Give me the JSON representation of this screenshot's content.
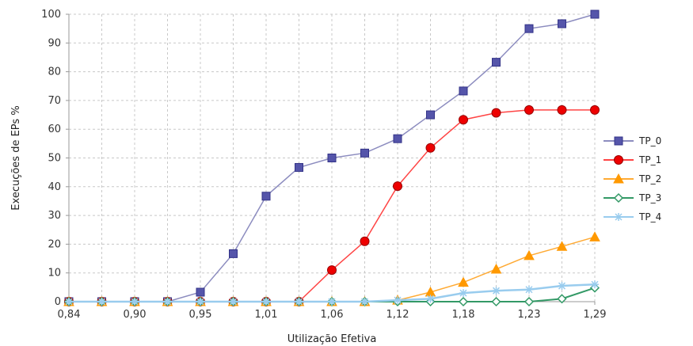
{
  "chart_data": {
    "type": "line",
    "title": "",
    "xlabel": "Utilização Efetiva",
    "ylabel": "Execuções de EPs %",
    "ylim": [
      0,
      100
    ],
    "yticks": [
      0,
      10,
      20,
      30,
      40,
      50,
      60,
      70,
      80,
      90,
      100
    ],
    "xtick_labels": [
      "0,84",
      "0,90",
      "0,95",
      "1,01",
      "1,06",
      "1,12",
      "1,18",
      "1,23",
      "1,29"
    ],
    "grid": true,
    "legend_position": "right",
    "x": [
      0.84,
      0.87,
      0.9,
      0.93,
      0.95,
      0.98,
      1.01,
      1.04,
      1.06,
      1.09,
      1.12,
      1.15,
      1.18,
      1.21,
      1.23,
      1.26,
      1.29
    ],
    "series": [
      {
        "name": "TP_0",
        "color": "#8c8cbf",
        "marker_fill": "#5555aa",
        "marker": "square",
        "values": [
          0,
          0,
          0,
          0,
          3.3,
          16.7,
          36.7,
          46.7,
          50,
          51.7,
          56.7,
          65,
          73.3,
          83.3,
          95,
          96.7,
          100
        ]
      },
      {
        "name": "TP_1",
        "color": "#ff4444",
        "marker_fill": "#ee0000",
        "marker": "circle",
        "values": [
          0,
          0,
          0,
          0,
          0,
          0,
          0,
          0,
          11,
          21,
          40.2,
          53.5,
          63.3,
          65.7,
          66.7,
          66.7,
          66.7
        ]
      },
      {
        "name": "TP_2",
        "color": "#ffaa33",
        "marker_fill": "#ff9900",
        "marker": "triangle",
        "values": [
          0,
          0,
          0,
          0,
          0,
          0,
          0,
          0,
          0,
          0,
          0.5,
          3.3,
          6.7,
          11.3,
          16,
          19.2,
          22.5
        ]
      },
      {
        "name": "TP_3",
        "color": "#339966",
        "marker_fill": "#ffffff",
        "marker": "diamond",
        "values": [
          0,
          0,
          0,
          0,
          0,
          0,
          0,
          0,
          0,
          0,
          0,
          0,
          0,
          0,
          0,
          1,
          4.8
        ]
      },
      {
        "name": "TP_4",
        "color": "#99ccee",
        "marker_fill": "#99ccee",
        "marker": "star",
        "values": [
          0,
          0,
          0,
          0,
          0,
          0,
          0,
          0,
          0,
          0,
          0.5,
          1,
          3,
          3.8,
          4.2,
          5.5,
          6
        ]
      }
    ]
  }
}
